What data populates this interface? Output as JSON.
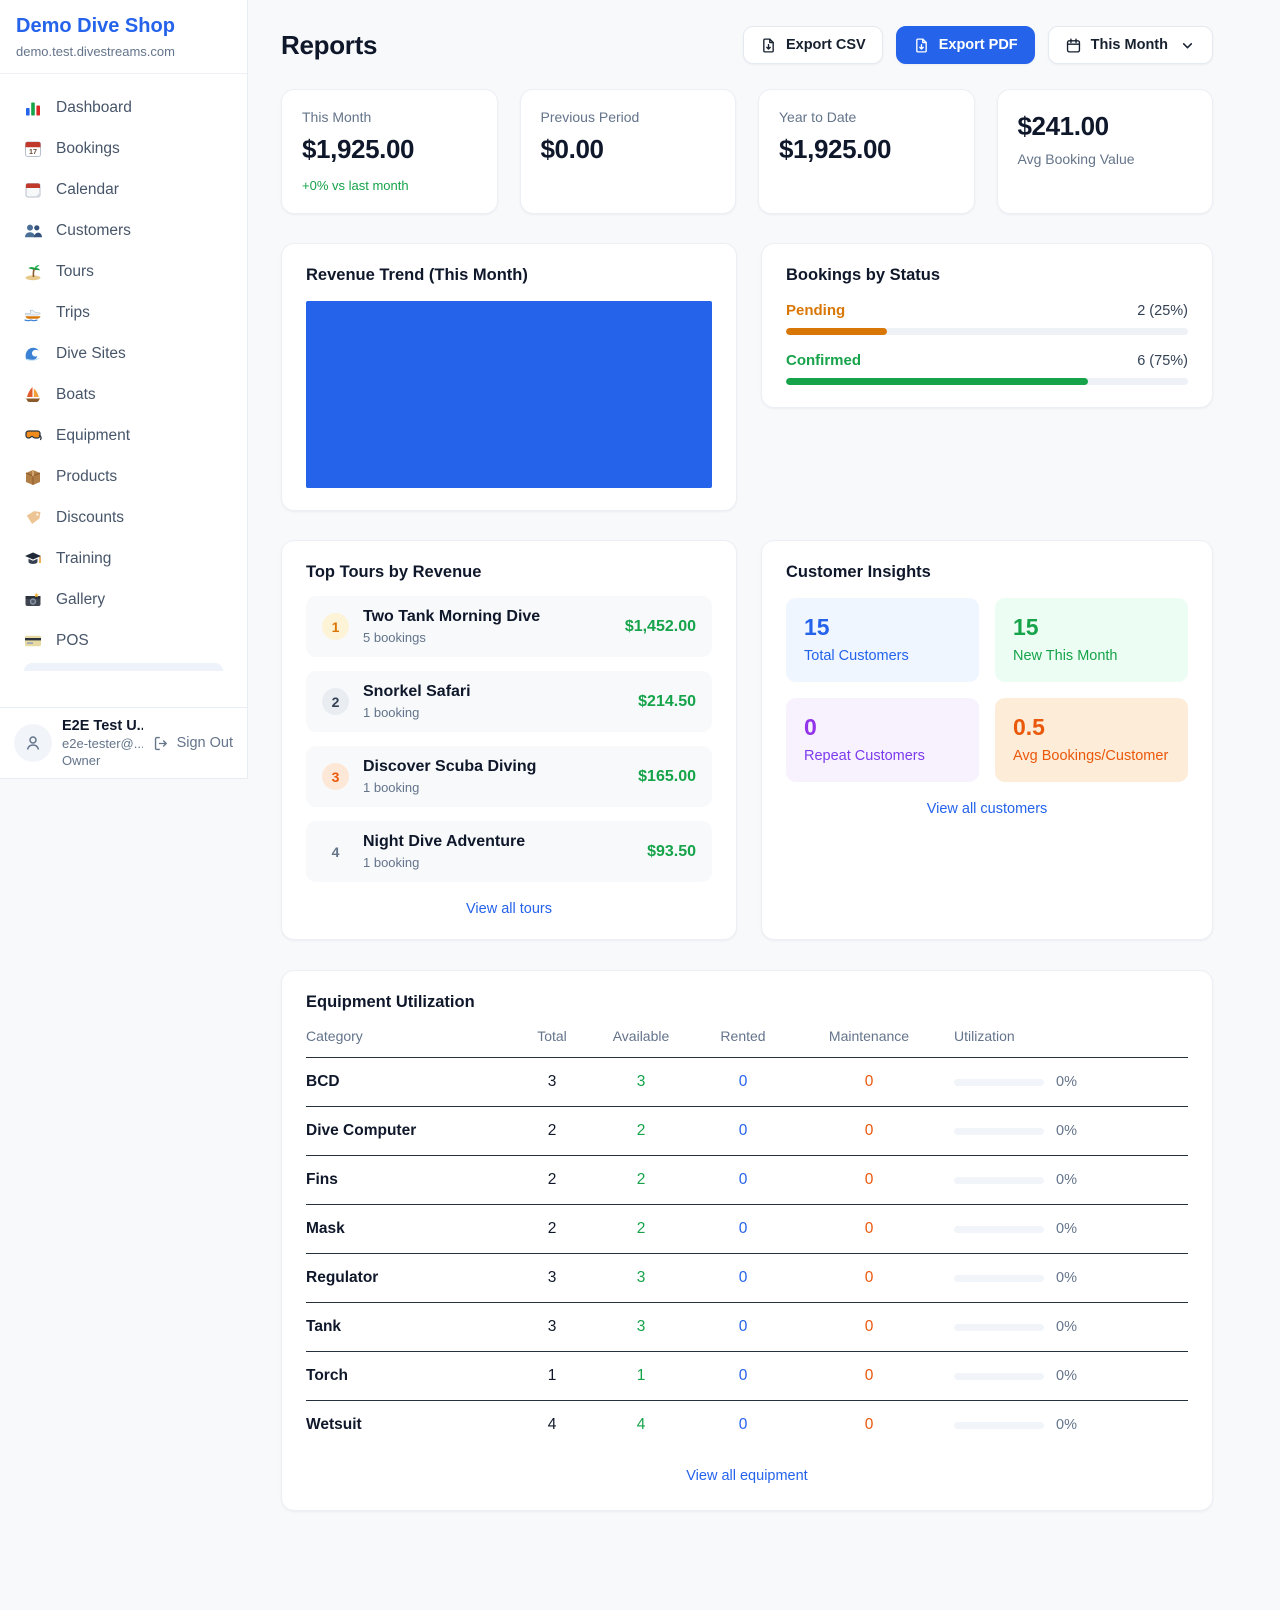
{
  "theme": {
    "accent_blue": "#2563eb",
    "green": "#16a34a",
    "amber": "#d97706",
    "deep_orange": "#ea580c",
    "purple": "#9333ea",
    "gray_text": "#64748b",
    "dark_text": "#0f172a"
  },
  "sidebar": {
    "brand": {
      "name": "Demo Dive Shop",
      "domain": "demo.test.divestreams.com"
    },
    "nav": [
      {
        "icon": "dashboard",
        "label": "Dashboard"
      },
      {
        "icon": "bookings",
        "label": "Bookings"
      },
      {
        "icon": "calendar",
        "label": "Calendar"
      },
      {
        "icon": "customers",
        "label": "Customers"
      },
      {
        "icon": "tours",
        "label": "Tours"
      },
      {
        "icon": "trips",
        "label": "Trips"
      },
      {
        "icon": "dive-sites",
        "label": "Dive Sites"
      },
      {
        "icon": "boats",
        "label": "Boats"
      },
      {
        "icon": "equipment",
        "label": "Equipment"
      },
      {
        "icon": "products",
        "label": "Products"
      },
      {
        "icon": "discounts",
        "label": "Discounts"
      },
      {
        "icon": "training",
        "label": "Training"
      },
      {
        "icon": "gallery",
        "label": "Gallery"
      },
      {
        "icon": "pos",
        "label": "POS"
      }
    ],
    "user": {
      "name": "E2E Test U...",
      "email": "e2e-tester@...",
      "role": "Owner",
      "sign_out_label": "Sign Out"
    }
  },
  "header": {
    "title": "Reports",
    "export_csv_label": "Export CSV",
    "export_pdf_label": "Export PDF",
    "period_label": "This Month"
  },
  "stats": [
    {
      "label": "This Month",
      "value": "$1,925.00",
      "delta": "+0% vs last month"
    },
    {
      "label": "Previous Period",
      "value": "$0.00"
    },
    {
      "label": "Year to Date",
      "value": "$1,925.00"
    },
    {
      "label": "Avg Booking Value",
      "value": "$241.00"
    }
  ],
  "revenue_trend": {
    "title": "Revenue Trend (This Month)",
    "fill_color": "#2563eb"
  },
  "bookings_by_status": {
    "title": "Bookings by Status",
    "rows": [
      {
        "label": "Pending",
        "value": "2 (25%)",
        "pct": 25,
        "color": "#d97706"
      },
      {
        "label": "Confirmed",
        "value": "6 (75%)",
        "pct": 75,
        "color": "#16a34a"
      }
    ]
  },
  "top_tours": {
    "title": "Top Tours by Revenue",
    "items": [
      {
        "rank": "1",
        "name": "Two Tank Morning Dive",
        "bookings": "5 bookings",
        "amount": "$1,452.00"
      },
      {
        "rank": "2",
        "name": "Snorkel Safari",
        "bookings": "1 booking",
        "amount": "$214.50"
      },
      {
        "rank": "3",
        "name": "Discover Scuba Diving",
        "bookings": "1 booking",
        "amount": "$165.00"
      },
      {
        "rank": "4",
        "name": "Night Dive Adventure",
        "bookings": "1 booking",
        "amount": "$93.50"
      }
    ],
    "view_all_label": "View all tours"
  },
  "customer_insights": {
    "title": "Customer Insights",
    "tiles": [
      {
        "value": "15",
        "label": "Total Customers"
      },
      {
        "value": "15",
        "label": "New This Month"
      },
      {
        "value": "0",
        "label": "Repeat Customers"
      },
      {
        "value": "0.5",
        "label": "Avg Bookings/Customer"
      }
    ],
    "view_all_label": "View all customers"
  },
  "equipment_utilization": {
    "title": "Equipment Utilization",
    "columns": [
      "Category",
      "Total",
      "Available",
      "Rented",
      "Maintenance",
      "Utilization"
    ],
    "rows": [
      {
        "category": "BCD",
        "total": "3",
        "available": "3",
        "rented": "0",
        "maintenance": "0",
        "utilization_pct": 0,
        "utilization": "0%"
      },
      {
        "category": "Dive Computer",
        "total": "2",
        "available": "2",
        "rented": "0",
        "maintenance": "0",
        "utilization_pct": 0,
        "utilization": "0%"
      },
      {
        "category": "Fins",
        "total": "2",
        "available": "2",
        "rented": "0",
        "maintenance": "0",
        "utilization_pct": 0,
        "utilization": "0%"
      },
      {
        "category": "Mask",
        "total": "2",
        "available": "2",
        "rented": "0",
        "maintenance": "0",
        "utilization_pct": 0,
        "utilization": "0%"
      },
      {
        "category": "Regulator",
        "total": "3",
        "available": "3",
        "rented": "0",
        "maintenance": "0",
        "utilization_pct": 0,
        "utilization": "0%"
      },
      {
        "category": "Tank",
        "total": "3",
        "available": "3",
        "rented": "0",
        "maintenance": "0",
        "utilization_pct": 0,
        "utilization": "0%"
      },
      {
        "category": "Torch",
        "total": "1",
        "available": "1",
        "rented": "0",
        "maintenance": "0",
        "utilization_pct": 0,
        "utilization": "0%"
      },
      {
        "category": "Wetsuit",
        "total": "4",
        "available": "4",
        "rented": "0",
        "maintenance": "0",
        "utilization_pct": 0,
        "utilization": "0%"
      }
    ],
    "view_all_label": "View all equipment"
  }
}
